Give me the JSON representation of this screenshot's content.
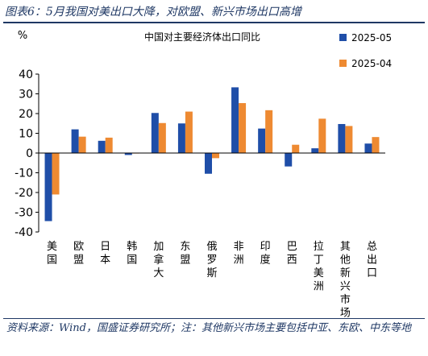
{
  "figure_title": "图表6：5月我国对美出口大降，对欧盟、新兴市场出口高增",
  "source_note": "资料来源：Wind，国盛证券研究所；注：其他新兴市场主要包括中亚、东欧、中东等地",
  "colors": {
    "series1": "#1f4ea8",
    "series2": "#ee8a32",
    "brand": "#1f3864"
  },
  "chart_data": {
    "type": "bar",
    "title": "中国对主要经济体出口同比",
    "ylabel": "%",
    "ylim": [
      -40,
      40
    ],
    "yticks": [
      -40,
      -30,
      -20,
      -10,
      0,
      10,
      20,
      30,
      40
    ],
    "grid": false,
    "legend_position": "top-right",
    "categories": [
      "美国",
      "欧盟",
      "日本",
      "韩国",
      "加拿大",
      "东盟",
      "俄罗斯",
      "非洲",
      "印度",
      "巴西",
      "拉丁美洲",
      "其他新兴市场",
      "总出口"
    ],
    "series": [
      {
        "name": "2025-05",
        "color": "#1f4ea8",
        "values": [
          -34.5,
          12,
          6.2,
          -1,
          20.3,
          15,
          -10.5,
          33.3,
          12.4,
          -6.8,
          2.4,
          14.7,
          4.8
        ]
      },
      {
        "name": "2025-04",
        "color": "#ee8a32",
        "values": [
          -21,
          8.3,
          7.8,
          0,
          15.2,
          21,
          -2.6,
          25.3,
          21.7,
          4.2,
          17.4,
          13.7,
          8.1
        ]
      }
    ]
  }
}
